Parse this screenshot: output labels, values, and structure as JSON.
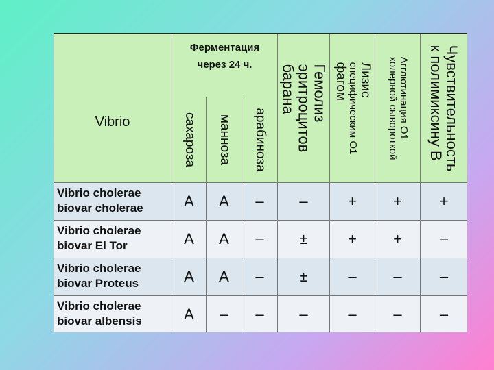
{
  "table": {
    "corner_label": "Vibrio",
    "fermentation_title": [
      "Ферментация",
      "через 24 ч."
    ],
    "fermentation_columns": [
      "сахароза",
      "манноза",
      "арабиноза"
    ],
    "test_columns": [
      [
        "Гемолиз",
        "эритроцитов",
        "барана"
      ],
      [
        "Лизис",
        "специфическим О1",
        "фагом"
      ],
      [
        "Агглютинация О1",
        "холерной сывороткой"
      ],
      [
        "Чувствительность",
        "к полимиксину В"
      ]
    ],
    "rows": [
      {
        "name": [
          "Vibrio  cholerae",
          "biovar cholerae"
        ],
        "values": [
          "A",
          "A",
          "–",
          "–",
          "+",
          "+",
          "+"
        ]
      },
      {
        "name": [
          "Vibrio  cholerae",
          "biovar El Tor"
        ],
        "values": [
          "A",
          "A",
          "–",
          "±",
          "+",
          "+",
          "–"
        ]
      },
      {
        "name": [
          "Vibrio  cholerae",
          "biovar Proteus"
        ],
        "values": [
          "A",
          "A",
          "–",
          "±",
          "–",
          "–",
          "–"
        ]
      },
      {
        "name": [
          "Vibrio  cholerae",
          "biovar albensis"
        ],
        "values": [
          "A",
          "–",
          "–",
          "–",
          "–",
          "–",
          "–"
        ]
      }
    ]
  }
}
